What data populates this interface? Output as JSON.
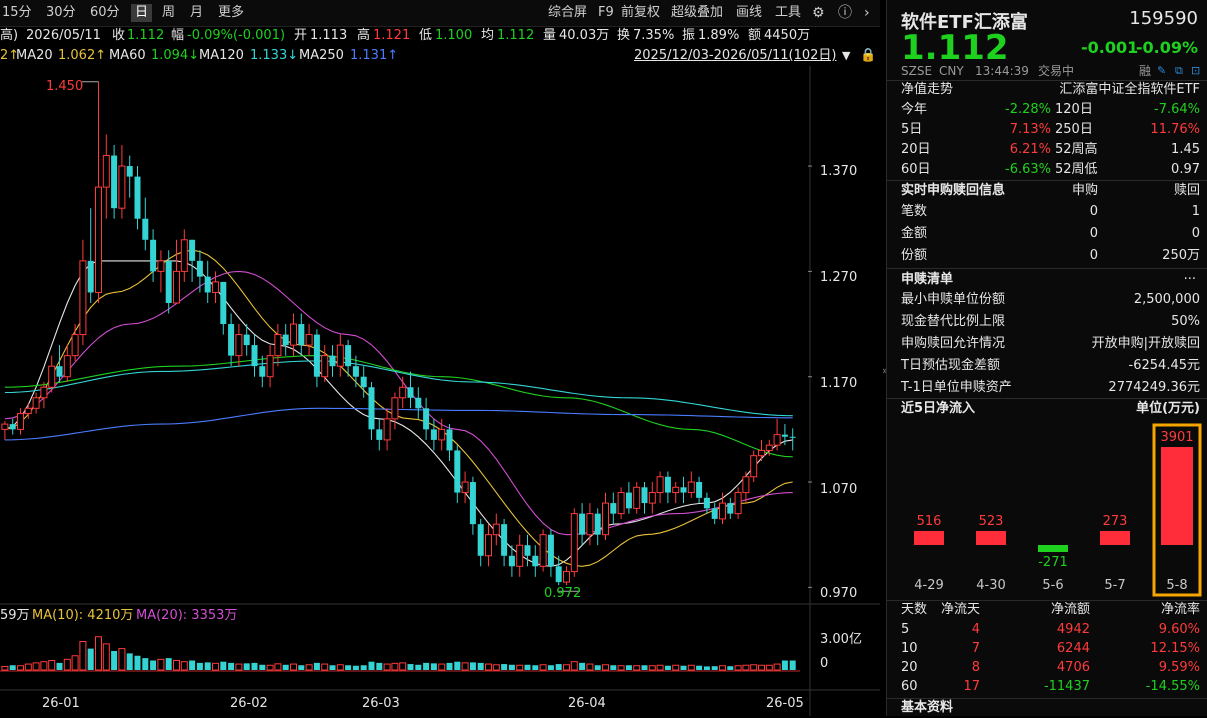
{
  "toolbar": {
    "periods": [
      "15分",
      "30分",
      "60分",
      "日",
      "周",
      "月",
      "更多"
    ],
    "selected": "日",
    "right_items": [
      "综合屏",
      "F9",
      "前复权",
      "超级叠加",
      "画线",
      "工具"
    ]
  },
  "info": {
    "prefix": "高)",
    "date": "2026/05/11",
    "close_label": "收",
    "close_value": "1.112",
    "change_label": "幅",
    "change_value": "-0.09%(-0.001)",
    "open_label": "开",
    "open_value": "1.113",
    "high_label": "高",
    "high_value": "1.121",
    "low_label": "低",
    "low_value": "1.100",
    "avg_label": "均",
    "avg_value": "1.112",
    "volume_label": "量",
    "volume_value": "40.03万",
    "turnover_label": "换",
    "turnover_value": "7.35%",
    "amplitude_label": "振",
    "amplitude_value": "1.89%",
    "amount_label": "额",
    "amount_value": "4450万"
  },
  "ma_line": {
    "prefix": "2↑",
    "items": [
      {
        "label": "MA20",
        "value": "1.062↑",
        "color": "#e8c23a"
      },
      {
        "label": "MA60",
        "value": "1.094↓",
        "color": "#1fd11f"
      },
      {
        "label": "MA120",
        "value": "1.133↓",
        "color": "#35d4d4"
      },
      {
        "label": "MA250",
        "value": "1.131↑",
        "color": "#4a7cff"
      }
    ],
    "range": "2025/12/03-2026/05/11(102日)"
  },
  "volume_line": {
    "prefix": "59万",
    "ma10": "MA(10): 4210万",
    "ma20": "MA(20): 3353万",
    "axis_top": "3.00亿",
    "axis_zero": "0"
  },
  "chart_data": {
    "type": "candlestick",
    "ytick_labels": [
      "1.370",
      "1.270",
      "1.170",
      "1.070",
      "0.970"
    ],
    "y_ticks": [
      1.37,
      1.27,
      1.17,
      1.07,
      0.97
    ],
    "ylim": [
      0.958,
      1.465
    ],
    "x_tick_labels": [
      "26-01",
      "26-02",
      "26-03",
      "26-04",
      "26-05"
    ],
    "annotations": [
      {
        "text": "1.450",
        "value": 1.45
      },
      {
        "text": "0.972",
        "value": 0.972
      }
    ],
    "candles": [
      [
        1.12,
        1.125,
        1.11,
        1.128
      ],
      [
        1.125,
        1.12,
        1.115,
        1.13
      ],
      [
        1.12,
        1.135,
        1.115,
        1.14
      ],
      [
        1.135,
        1.14,
        1.13,
        1.145
      ],
      [
        1.14,
        1.15,
        1.135,
        1.155
      ],
      [
        1.15,
        1.16,
        1.14,
        1.165
      ],
      [
        1.16,
        1.18,
        1.155,
        1.19
      ],
      [
        1.18,
        1.17,
        1.165,
        1.2
      ],
      [
        1.17,
        1.19,
        1.165,
        1.2
      ],
      [
        1.19,
        1.21,
        1.185,
        1.22
      ],
      [
        1.21,
        1.28,
        1.2,
        1.3
      ],
      [
        1.28,
        1.25,
        1.24,
        1.33
      ],
      [
        1.25,
        1.35,
        1.24,
        1.45
      ],
      [
        1.35,
        1.38,
        1.32,
        1.4
      ],
      [
        1.38,
        1.33,
        1.32,
        1.39
      ],
      [
        1.33,
        1.37,
        1.32,
        1.39
      ],
      [
        1.37,
        1.36,
        1.34,
        1.38
      ],
      [
        1.36,
        1.32,
        1.31,
        1.37
      ],
      [
        1.32,
        1.3,
        1.29,
        1.34
      ],
      [
        1.3,
        1.27,
        1.26,
        1.31
      ],
      [
        1.27,
        1.28,
        1.25,
        1.29
      ],
      [
        1.28,
        1.24,
        1.23,
        1.29
      ],
      [
        1.24,
        1.27,
        1.24,
        1.3
      ],
      [
        1.27,
        1.3,
        1.26,
        1.31
      ],
      [
        1.3,
        1.28,
        1.26,
        1.3
      ],
      [
        1.28,
        1.265,
        1.25,
        1.29
      ],
      [
        1.265,
        1.25,
        1.24,
        1.28
      ],
      [
        1.25,
        1.26,
        1.24,
        1.27
      ],
      [
        1.26,
        1.22,
        1.21,
        1.26
      ],
      [
        1.22,
        1.19,
        1.18,
        1.23
      ],
      [
        1.19,
        1.21,
        1.18,
        1.22
      ],
      [
        1.21,
        1.2,
        1.19,
        1.22
      ],
      [
        1.2,
        1.18,
        1.17,
        1.21
      ],
      [
        1.18,
        1.17,
        1.16,
        1.19
      ],
      [
        1.17,
        1.19,
        1.16,
        1.2
      ],
      [
        1.19,
        1.21,
        1.18,
        1.22
      ],
      [
        1.21,
        1.2,
        1.19,
        1.22
      ],
      [
        1.2,
        1.22,
        1.19,
        1.23
      ],
      [
        1.22,
        1.2,
        1.19,
        1.23
      ],
      [
        1.2,
        1.21,
        1.19,
        1.22
      ],
      [
        1.21,
        1.17,
        1.16,
        1.215
      ],
      [
        1.17,
        1.19,
        1.165,
        1.2
      ],
      [
        1.19,
        1.18,
        1.17,
        1.2
      ],
      [
        1.18,
        1.2,
        1.17,
        1.21
      ],
      [
        1.2,
        1.18,
        1.17,
        1.205
      ],
      [
        1.18,
        1.17,
        1.16,
        1.19
      ],
      [
        1.17,
        1.16,
        1.15,
        1.18
      ],
      [
        1.16,
        1.12,
        1.11,
        1.165
      ],
      [
        1.12,
        1.11,
        1.1,
        1.13
      ],
      [
        1.11,
        1.13,
        1.1,
        1.14
      ],
      [
        1.13,
        1.15,
        1.12,
        1.155
      ],
      [
        1.15,
        1.16,
        1.14,
        1.17
      ],
      [
        1.16,
        1.15,
        1.14,
        1.175
      ],
      [
        1.15,
        1.14,
        1.13,
        1.16
      ],
      [
        1.14,
        1.12,
        1.11,
        1.15
      ],
      [
        1.12,
        1.11,
        1.1,
        1.13
      ],
      [
        1.11,
        1.12,
        1.1,
        1.13
      ],
      [
        1.12,
        1.1,
        1.09,
        1.125
      ],
      [
        1.1,
        1.06,
        1.05,
        1.105
      ],
      [
        1.06,
        1.07,
        1.05,
        1.08
      ],
      [
        1.07,
        1.03,
        1.02,
        1.075
      ],
      [
        1.03,
        1.0,
        0.99,
        1.035
      ],
      [
        1.0,
        1.02,
        0.99,
        1.03
      ],
      [
        1.02,
        1.03,
        1.01,
        1.04
      ],
      [
        1.03,
        1.0,
        0.99,
        1.035
      ],
      [
        1.0,
        0.99,
        0.98,
        1.01
      ],
      [
        0.99,
        1.01,
        0.98,
        1.02
      ],
      [
        1.01,
        1.0,
        0.99,
        1.02
      ],
      [
        1.0,
        0.99,
        0.98,
        1.01
      ],
      [
        0.99,
        1.02,
        0.985,
        1.025
      ],
      [
        1.02,
        0.99,
        0.98,
        1.025
      ],
      [
        0.99,
        0.975,
        0.972,
        1.0
      ],
      [
        0.975,
        0.985,
        0.972,
        0.99
      ],
      [
        0.985,
        1.04,
        0.98,
        1.045
      ],
      [
        1.04,
        1.02,
        1.01,
        1.05
      ],
      [
        1.02,
        1.04,
        1.01,
        1.05
      ],
      [
        1.04,
        1.02,
        1.01,
        1.045
      ],
      [
        1.02,
        1.05,
        1.015,
        1.06
      ],
      [
        1.05,
        1.04,
        1.03,
        1.06
      ],
      [
        1.04,
        1.06,
        1.035,
        1.065
      ],
      [
        1.06,
        1.045,
        1.04,
        1.07
      ],
      [
        1.045,
        1.065,
        1.04,
        1.07
      ],
      [
        1.065,
        1.05,
        1.04,
        1.07
      ],
      [
        1.05,
        1.06,
        1.04,
        1.07
      ],
      [
        1.06,
        1.075,
        1.05,
        1.08
      ],
      [
        1.075,
        1.06,
        1.05,
        1.08
      ],
      [
        1.06,
        1.065,
        1.05,
        1.07
      ],
      [
        1.065,
        1.06,
        1.05,
        1.075
      ],
      [
        1.06,
        1.07,
        1.055,
        1.08
      ],
      [
        1.07,
        1.055,
        1.05,
        1.075
      ],
      [
        1.055,
        1.045,
        1.04,
        1.06
      ],
      [
        1.045,
        1.035,
        1.03,
        1.05
      ],
      [
        1.035,
        1.05,
        1.03,
        1.06
      ],
      [
        1.05,
        1.04,
        1.035,
        1.055
      ],
      [
        1.04,
        1.06,
        1.035,
        1.065
      ],
      [
        1.06,
        1.075,
        1.05,
        1.08
      ],
      [
        1.075,
        1.095,
        1.07,
        1.1
      ],
      [
        1.095,
        1.1,
        1.09,
        1.11
      ],
      [
        1.1,
        1.105,
        1.095,
        1.11
      ],
      [
        1.105,
        1.115,
        1.1,
        1.13
      ],
      [
        1.115,
        1.113,
        1.105,
        1.125
      ],
      [
        1.113,
        1.112,
        1.1,
        1.121
      ]
    ],
    "ma_series": [
      {
        "name": "MA5",
        "color": "#e6e6e6",
        "x": [
          0,
          12,
          22,
          35,
          48,
          70,
          78,
          90,
          101
        ],
        "values": [
          1.12,
          1.28,
          1.28,
          1.2,
          1.13,
          0.99,
          1.03,
          1.05,
          1.11
        ]
      },
      {
        "name": "MA10",
        "color": "#e8c23a",
        "x": [
          0,
          14,
          24,
          38,
          52,
          74,
          82,
          95,
          101
        ],
        "values": [
          1.12,
          1.25,
          1.29,
          1.2,
          1.13,
          0.99,
          1.02,
          1.05,
          1.07
        ]
      },
      {
        "name": "MA20",
        "color": "#d24ed2",
        "x": [
          0,
          16,
          30,
          44,
          58,
          72,
          86,
          101
        ],
        "values": [
          1.13,
          1.22,
          1.27,
          1.21,
          1.12,
          1.02,
          1.04,
          1.06
        ]
      },
      {
        "name": "MA60",
        "color": "#1fd11f",
        "x": [
          0,
          22,
          40,
          56,
          72,
          88,
          101
        ],
        "values": [
          1.16,
          1.18,
          1.19,
          1.17,
          1.15,
          1.12,
          1.094
        ]
      },
      {
        "name": "MA120",
        "color": "#35d4d4",
        "x": [
          0,
          20,
          40,
          60,
          80,
          101
        ],
        "values": [
          1.155,
          1.175,
          1.185,
          1.165,
          1.15,
          1.133
        ]
      },
      {
        "name": "MA250",
        "color": "#4a7cff",
        "x": [
          0,
          20,
          40,
          60,
          80,
          101
        ],
        "values": [
          1.11,
          1.125,
          1.14,
          1.138,
          1.134,
          1.131
        ]
      }
    ],
    "volume": [
      0.15,
      0.2,
      0.18,
      0.25,
      0.3,
      0.35,
      0.4,
      0.3,
      0.45,
      0.6,
      1.2,
      0.9,
      1.4,
      1.1,
      0.8,
      0.9,
      0.7,
      0.6,
      0.5,
      0.4,
      0.45,
      0.5,
      0.4,
      0.35,
      0.4,
      0.3,
      0.32,
      0.28,
      0.35,
      0.3,
      0.25,
      0.28,
      0.3,
      0.22,
      0.2,
      0.26,
      0.22,
      0.25,
      0.2,
      0.22,
      0.3,
      0.25,
      0.2,
      0.22,
      0.2,
      0.18,
      0.2,
      0.35,
      0.3,
      0.25,
      0.28,
      0.3,
      0.25,
      0.22,
      0.3,
      0.28,
      0.25,
      0.3,
      0.35,
      0.3,
      0.32,
      0.3,
      0.25,
      0.22,
      0.25,
      0.22,
      0.2,
      0.22,
      0.2,
      0.22,
      0.2,
      0.25,
      0.22,
      0.35,
      0.3,
      0.25,
      0.2,
      0.22,
      0.2,
      0.18,
      0.2,
      0.18,
      0.2,
      0.18,
      0.2,
      0.18,
      0.2,
      0.18,
      0.2,
      0.18,
      0.15,
      0.16,
      0.18,
      0.16,
      0.18,
      0.2,
      0.22,
      0.2,
      0.2,
      0.25,
      0.4,
      0.4
    ]
  },
  "panel": {
    "name": "软件ETF汇添富",
    "code": "159590",
    "price": "1.112",
    "change": "-0.001",
    "change_pct": "-0.09%",
    "exchange": "SZSE",
    "currency": "CNY",
    "time": "13:44:39",
    "status": "交易中",
    "margin_flag": "融",
    "nav_title": "净值走势",
    "nav_index": "汇添富中证全指软件ETF",
    "perf": [
      {
        "l1": "今年",
        "v1": "-2.28%",
        "c1": "green",
        "l2": "120日",
        "v2": "-7.64%",
        "c2": "green"
      },
      {
        "l1": "5日",
        "v1": "7.13%",
        "c1": "red",
        "l2": "250日",
        "v2": "11.76%",
        "c2": "red"
      },
      {
        "l1": "20日",
        "v1": "6.21%",
        "c1": "red",
        "l2": "52周高",
        "v2": "1.45",
        "c2": "white"
      },
      {
        "l1": "60日",
        "v1": "-6.63%",
        "c1": "green",
        "l2": "52周低",
        "v2": "0.97",
        "c2": "white"
      }
    ],
    "sr_title": "实时申购赎回信息",
    "sr_buy": "申购",
    "sr_sell": "赎回",
    "sr_rows": [
      {
        "label": "笔数",
        "buy": "0",
        "sell": "1"
      },
      {
        "label": "金额",
        "buy": "0",
        "sell": "0"
      },
      {
        "label": "份额",
        "buy": "0",
        "sell": "250万"
      }
    ],
    "list_title": "申赎清单",
    "list_more": "···",
    "list_rows": [
      {
        "label": "最小申赎单位份额",
        "value": "2,500,000"
      },
      {
        "label": "现金替代比例上限",
        "value": "50%"
      },
      {
        "label": "申购赎回允许情况",
        "value": "开放申购|开放赎回"
      },
      {
        "label": "T日预估现金差额",
        "value": "-6254.45元"
      },
      {
        "label": "T-1日单位申赎资产",
        "value": "2774249.36元"
      }
    ],
    "flow_title": "近5日净流入",
    "flow_unit": "单位(万元)",
    "flow_bars": [
      {
        "date": "4-29",
        "value": 516
      },
      {
        "date": "4-30",
        "value": 523
      },
      {
        "date": "5-6",
        "value": -271
      },
      {
        "date": "5-7",
        "value": 273
      },
      {
        "date": "5-8",
        "value": 3901
      }
    ],
    "flow_table_headers": [
      "天数",
      "净流天",
      "净流额",
      "净流率"
    ],
    "flow_table": [
      {
        "d": "5",
        "n": "4",
        "amt": "4942",
        "rate": "9.60%",
        "c": "red"
      },
      {
        "d": "10",
        "n": "7",
        "amt": "6244",
        "rate": "12.15%",
        "c": "red"
      },
      {
        "d": "20",
        "n": "8",
        "amt": "4706",
        "rate": "9.59%",
        "c": "red"
      },
      {
        "d": "60",
        "n": "17",
        "amt": "-11437",
        "rate": "-14.55%",
        "c": "green"
      }
    ],
    "basic_info": "基本资料"
  }
}
